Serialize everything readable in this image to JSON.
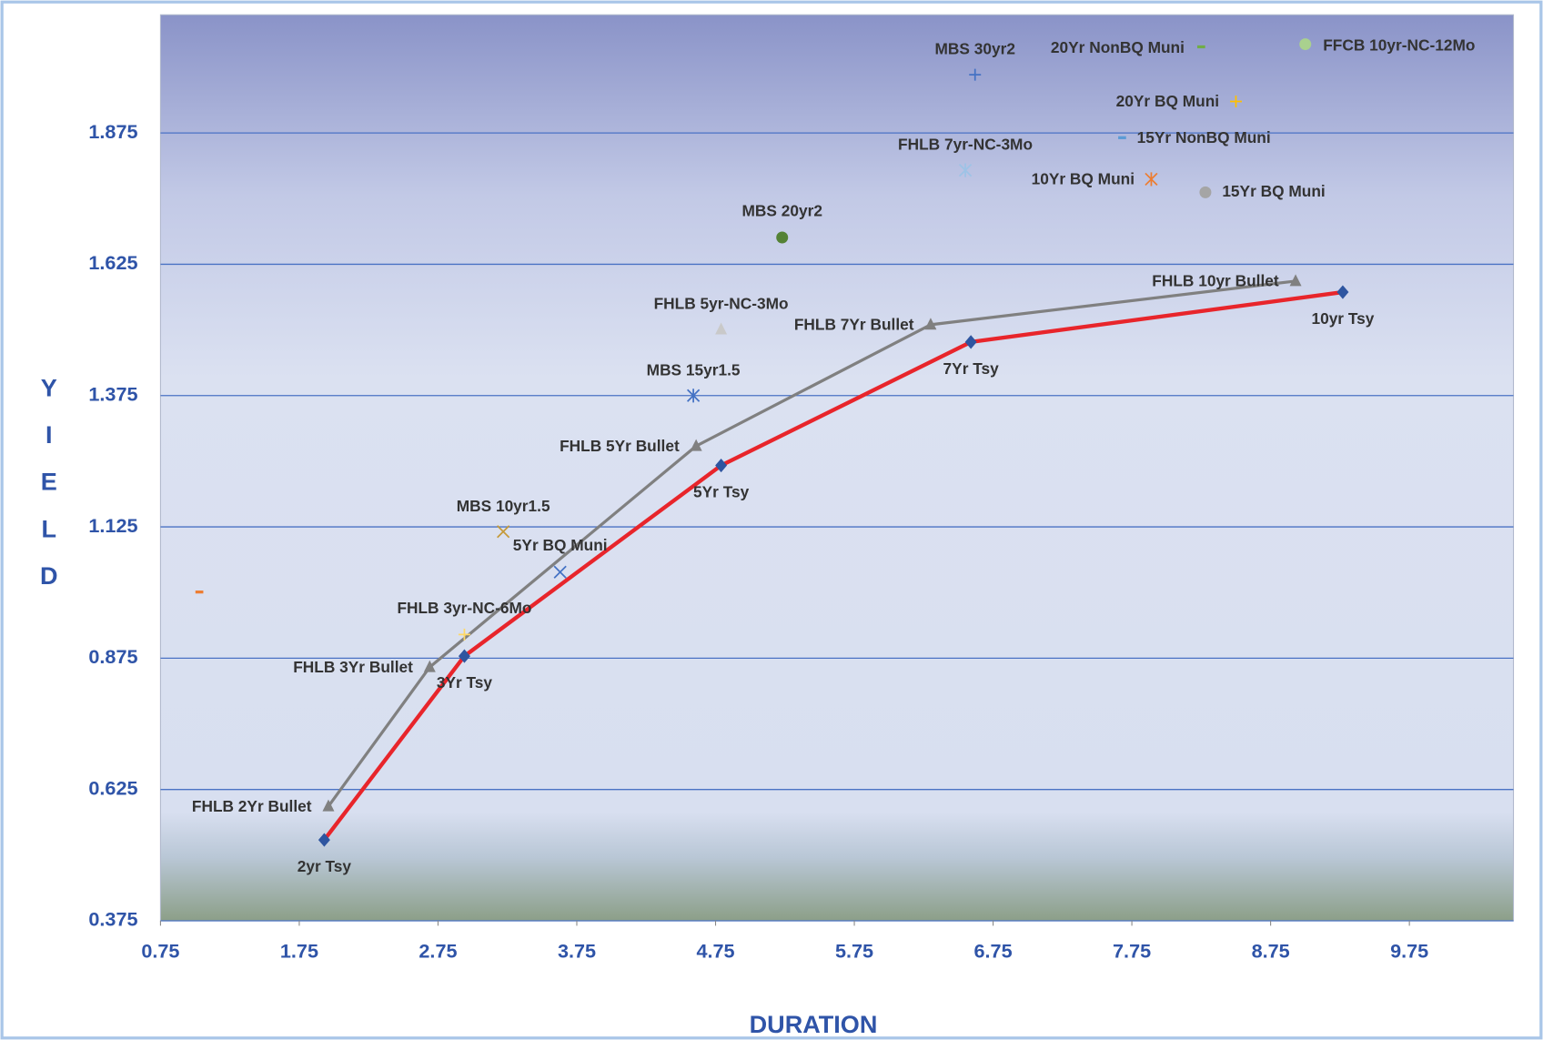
{
  "chart_data": {
    "type": "scatter",
    "x_label": "DURATION",
    "y_label": "YIELD",
    "xlim": [
      0.75,
      10.5
    ],
    "ylim": [
      0.375,
      2.1
    ],
    "xticks": [
      0.75,
      1.75,
      2.75,
      3.75,
      4.75,
      5.75,
      6.75,
      7.75,
      8.75,
      9.75
    ],
    "yticks": [
      0.375,
      0.625,
      0.875,
      1.125,
      1.375,
      1.625,
      1.875
    ],
    "grid": true,
    "series": [
      {
        "line_color": "#e8252b",
        "color": "#2e55a0",
        "marker": "diamond",
        "labels": [
          "2yr Tsy",
          "3Yr Tsy",
          "5Yr Tsy",
          "7Yr Tsy",
          "10yr Tsy"
        ],
        "x": [
          1.93,
          2.94,
          4.79,
          6.59,
          9.27
        ],
        "values": [
          0.529,
          0.879,
          1.242,
          1.477,
          1.572
        ]
      },
      {
        "line_color": "#808080",
        "color": "#808080",
        "marker": "triangle",
        "labels": [
          "FHLB 2Yr Bullet",
          "FHLB 3Yr Bullet",
          "FHLB 5Yr Bullet",
          "FHLB 7Yr Bullet",
          "FHLB 10yr Bullet"
        ],
        "x": [
          1.96,
          2.69,
          4.61,
          6.3,
          8.93
        ],
        "values": [
          0.593,
          0.858,
          1.279,
          1.51,
          1.593
        ]
      },
      {
        "color": "#4472c4",
        "marker": "plus",
        "labels": [
          "MBS 30yr2"
        ],
        "x": [
          6.62
        ],
        "values": [
          1.986
        ]
      },
      {
        "color": "#70ad47",
        "marker": "dash",
        "labels": [
          "20Yr NonBQ Muni"
        ],
        "x": [
          8.25
        ],
        "values": [
          2.039
        ]
      },
      {
        "color": "#a9d18e",
        "marker": "circle",
        "labels": [
          "FFCB 10yr-NC-12Mo"
        ],
        "x": [
          9.0
        ],
        "values": [
          2.044
        ]
      },
      {
        "color": "#ffc000",
        "marker": "plus",
        "labels": [
          "20Yr BQ Muni"
        ],
        "x": [
          8.5
        ],
        "values": [
          1.935
        ]
      },
      {
        "color": "#5b9bd5",
        "marker": "dash",
        "labels": [
          "15Yr NonBQ Muni"
        ],
        "x": [
          7.68
        ],
        "values": [
          1.866
        ]
      },
      {
        "color": "#9dc3e6",
        "marker": "star",
        "labels": [
          "FHLB 7yr-NC-3Mo"
        ],
        "x": [
          6.55
        ],
        "values": [
          1.804
        ]
      },
      {
        "color": "#ed7d31",
        "marker": "star",
        "labels": [
          "10Yr BQ Muni"
        ],
        "x": [
          7.89
        ],
        "values": [
          1.787
        ]
      },
      {
        "color": "#a5a5a5",
        "marker": "circle",
        "labels": [
          "15Yr BQ Muni"
        ],
        "x": [
          8.28
        ],
        "values": [
          1.762
        ]
      },
      {
        "color": "#548235",
        "marker": "circle",
        "labels": [
          "MBS 20yr2"
        ],
        "x": [
          5.23
        ],
        "values": [
          1.676
        ]
      },
      {
        "color": "#c9c9c9",
        "marker": "triangle",
        "labels": [
          "FHLB 5yr-NC-3Mo"
        ],
        "x": [
          4.79
        ],
        "values": [
          1.501
        ]
      },
      {
        "color": "#4472c4",
        "marker": "star",
        "labels": [
          "MBS 15yr1.5"
        ],
        "x": [
          4.59
        ],
        "values": [
          1.375
        ]
      },
      {
        "color": "#c59a3a",
        "marker": "x",
        "labels": [
          "MBS 10yr1.5"
        ],
        "x": [
          3.22
        ],
        "values": [
          1.116
        ]
      },
      {
        "color": "#4472c4",
        "marker": "x",
        "labels": [
          "5Yr BQ Muni"
        ],
        "x": [
          3.63
        ],
        "values": [
          1.039
        ]
      },
      {
        "color": "#ffd966",
        "marker": "plus",
        "labels": [
          "FHLB 3yr-NC-6Mo"
        ],
        "x": [
          2.94
        ],
        "values": [
          0.92
        ]
      },
      {
        "color": "#ed7d31",
        "marker": "dash",
        "x": [
          1.03
        ],
        "values": [
          1.001
        ]
      }
    ]
  }
}
